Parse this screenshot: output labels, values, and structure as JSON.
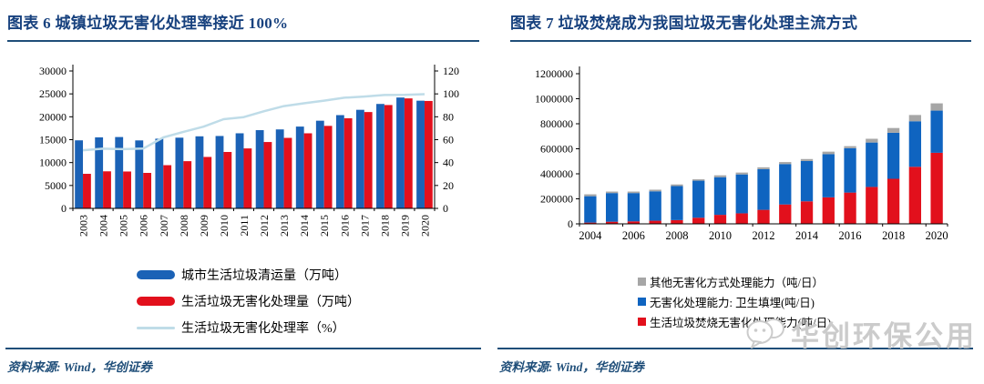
{
  "figure6": {
    "title": "图表 6  城镇垃圾无害化处理率接近 100%",
    "source": "资料来源: Wind，华创证券",
    "accent_color": "#1F4E79"
  },
  "figure7": {
    "title": "图表 7  垃圾焚烧成为我国垃圾无害化处理主流方式",
    "source": "资料来源: Wind，华创证券",
    "watermark": {
      "icon": "wechat-logo-icon",
      "text": "华创环保公用",
      "color": "#CBCBCB"
    }
  },
  "chart_data": [
    {
      "type": "bar+line",
      "title": "城镇垃圾无害化处理率接近 100%",
      "categories": [
        "2003",
        "2004",
        "2005",
        "2006",
        "2007",
        "2008",
        "2009",
        "2010",
        "2011",
        "2012",
        "2013",
        "2014",
        "2015",
        "2016",
        "2017",
        "2018",
        "2019",
        "2020"
      ],
      "series": [
        {
          "name": "城市生活垃圾清运量（万吨）",
          "type": "bar",
          "axis": "left",
          "color": "#1B62B6",
          "values": [
            14857,
            15509,
            15577,
            14841,
            15215,
            15438,
            15734,
            15805,
            16395,
            17081,
            17239,
            17860,
            19142,
            20362,
            21521,
            22802,
            24206,
            23512
          ]
        },
        {
          "name": "生活垃圾无害化处理量（万吨）",
          "type": "bar",
          "axis": "left",
          "color": "#E2101C",
          "values": [
            7545,
            8089,
            8051,
            7747,
            9433,
            10307,
            11232,
            12318,
            13090,
            14490,
            15394,
            16394,
            18013,
            19674,
            21034,
            22565,
            24013,
            23452
          ]
        },
        {
          "name": "生活垃圾无害化处理率（%）",
          "type": "line",
          "axis": "right",
          "color": "#BFDCE8",
          "values": [
            50.8,
            52.1,
            51.7,
            52.2,
            62.0,
            66.8,
            71.4,
            77.9,
            79.7,
            84.8,
            89.3,
            91.8,
            94.1,
            96.6,
            97.7,
            99.0,
            99.2,
            99.7
          ]
        }
      ],
      "left_axis": {
        "min": 0,
        "max": 30000,
        "ticks": [
          0,
          5000,
          10000,
          15000,
          20000,
          25000,
          30000
        ]
      },
      "right_axis": {
        "min": 0,
        "max": 120,
        "ticks": [
          0,
          20,
          40,
          60,
          80,
          100,
          120
        ]
      },
      "grid": false,
      "legend_position": "bottom"
    },
    {
      "type": "stacked-bar",
      "title": "垃圾焚烧成为我国垃圾无害化处理主流方式",
      "categories": [
        "2004",
        "2005",
        "2006",
        "2007",
        "2008",
        "2009",
        "2010",
        "2011",
        "2012",
        "2013",
        "2014",
        "2015",
        "2016",
        "2017",
        "2018",
        "2019",
        "2020"
      ],
      "series": [
        {
          "name": "生活垃圾焚烧无害化处理能力(吨/日)",
          "color": "#E2101C",
          "values": [
            10000,
            17000,
            20000,
            25000,
            30000,
            49000,
            72000,
            84000,
            112000,
            155000,
            180000,
            212000,
            250000,
            295000,
            360000,
            456000,
            568000
          ]
        },
        {
          "name": "无害化处理能力: 卫生填埋(吨/日)",
          "color": "#0F64C0",
          "values": [
            211000,
            229000,
            226000,
            235000,
            272000,
            296000,
            301000,
            311000,
            325000,
            323000,
            322000,
            345000,
            355000,
            355000,
            368000,
            364000,
            337000
          ]
        },
        {
          "name": "其他无害化方式处理能力（吨/日）",
          "color": "#A6A6A6",
          "values": [
            15000,
            12000,
            12000,
            13000,
            13000,
            11000,
            15000,
            15000,
            15000,
            16000,
            16000,
            20000,
            16000,
            30000,
            38000,
            50000,
            58000
          ]
        }
      ],
      "y_axis": {
        "min": 0,
        "max": 1200000,
        "ticks": [
          0,
          200000,
          400000,
          600000,
          800000,
          1000000,
          1200000
        ]
      },
      "x_tick_labels": [
        "2004",
        "2006",
        "2008",
        "2010",
        "2012",
        "2014",
        "2016",
        "2018",
        "2020"
      ],
      "grid": false,
      "legend_position": "bottom-right"
    }
  ]
}
